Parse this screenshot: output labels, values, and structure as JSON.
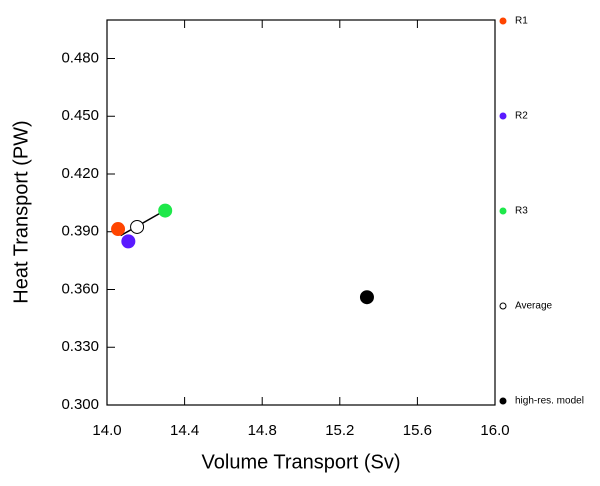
{
  "chart_data": {
    "type": "scatter",
    "x_label": "Volume Transport (Sv)",
    "y_label": "Heat Transport (PW)",
    "xlim": [
      14.0,
      16.0
    ],
    "ylim": [
      0.3,
      0.5
    ],
    "xticks": [
      {
        "value": 14.0,
        "label": "14.0"
      },
      14.4,
      14.8,
      15.2,
      15.6,
      {
        "value": 16.0,
        "label": "16.0"
      }
    ],
    "yticks": [
      {
        "value": 0.3,
        "label": "0.300"
      },
      {
        "value": 0.33,
        "label": "0.330"
      },
      {
        "value": 0.36,
        "label": "0.360"
      },
      {
        "value": 0.39,
        "label": "0.390"
      },
      {
        "value": 0.42,
        "label": "0.420"
      },
      {
        "value": 0.45,
        "label": "0.450"
      },
      {
        "value": 0.48,
        "label": "0.480"
      }
    ],
    "fit_line": {
      "x": [
        14.07,
        14.28
      ],
      "y": [
        0.388,
        0.4
      ]
    },
    "series": [
      {
        "name": "R1",
        "color": "#ff4500",
        "x": [
          14.057
        ],
        "values": [
          0.3914
        ]
      },
      {
        "name": "R2",
        "color": "#5a1aff",
        "x": [
          14.11
        ],
        "values": [
          0.385
        ]
      },
      {
        "name": "R3",
        "color": "#1ee84a",
        "x": [
          14.3
        ],
        "values": [
          0.401
        ]
      },
      {
        "name": "Average",
        "color": "none",
        "x": [
          14.155
        ],
        "values": [
          0.3925
        ]
      },
      {
        "name": "high-res. model",
        "color": "#000000",
        "x": [
          15.34
        ],
        "values": [
          0.356
        ]
      }
    ]
  }
}
